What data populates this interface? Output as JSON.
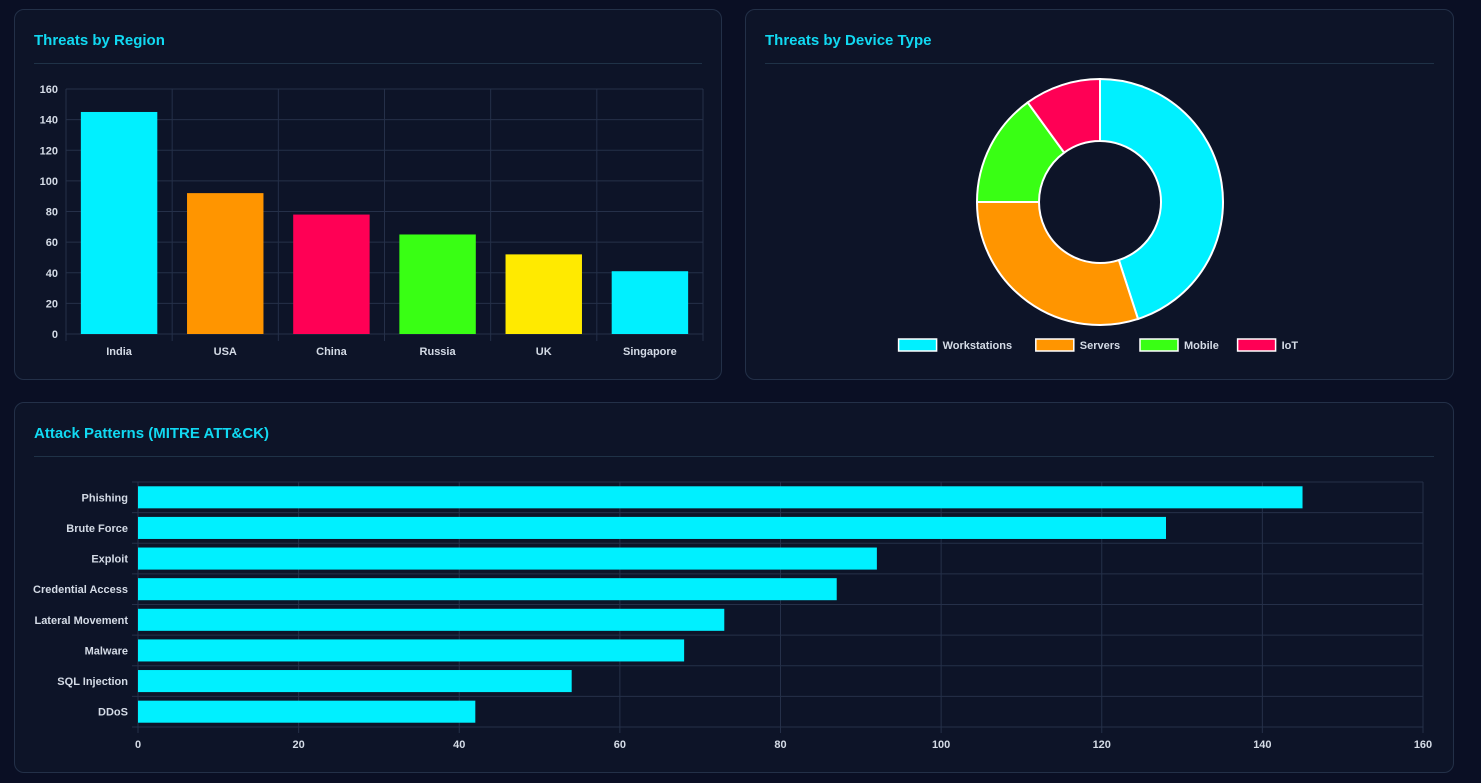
{
  "cards": {
    "region_title": "Threats by Region",
    "device_title": "Threats by Device Type",
    "attack_title": "Attack Patterns (MITRE ATT&CK)"
  },
  "chart_data": [
    {
      "type": "bar",
      "title": "Threats by Region",
      "categories": [
        "India",
        "USA",
        "China",
        "Russia",
        "UK",
        "Singapore"
      ],
      "values": [
        145,
        92,
        78,
        65,
        52,
        41
      ],
      "colors": [
        "#00f0ff",
        "#ff9500",
        "#ff0055",
        "#39ff14",
        "#ffea00",
        "#00f0ff"
      ],
      "ylim": [
        0,
        160
      ],
      "yticks": [
        0,
        20,
        40,
        60,
        80,
        100,
        120,
        140,
        160
      ],
      "grid": true
    },
    {
      "type": "pie",
      "title": "Threats by Device Type",
      "labels": [
        "Workstations",
        "Servers",
        "Mobile",
        "IoT"
      ],
      "values": [
        45,
        30,
        15,
        10
      ],
      "colors": [
        "#00f0ff",
        "#ff9500",
        "#39ff14",
        "#ff0055"
      ],
      "legend_position": "bottom"
    },
    {
      "type": "bar",
      "orientation": "horizontal",
      "title": "Attack Patterns (MITRE ATT&CK)",
      "categories": [
        "Phishing",
        "Brute Force",
        "Exploit",
        "Credential Access",
        "Lateral Movement",
        "Malware",
        "SQL Injection",
        "DDoS"
      ],
      "values": [
        145,
        128,
        92,
        87,
        73,
        68,
        54,
        42
      ],
      "colors": [
        "#00f0ff"
      ],
      "xlim": [
        0,
        160
      ],
      "xticks": [
        0,
        20,
        40,
        60,
        80,
        100,
        120,
        140,
        160
      ],
      "grid": true
    }
  ]
}
